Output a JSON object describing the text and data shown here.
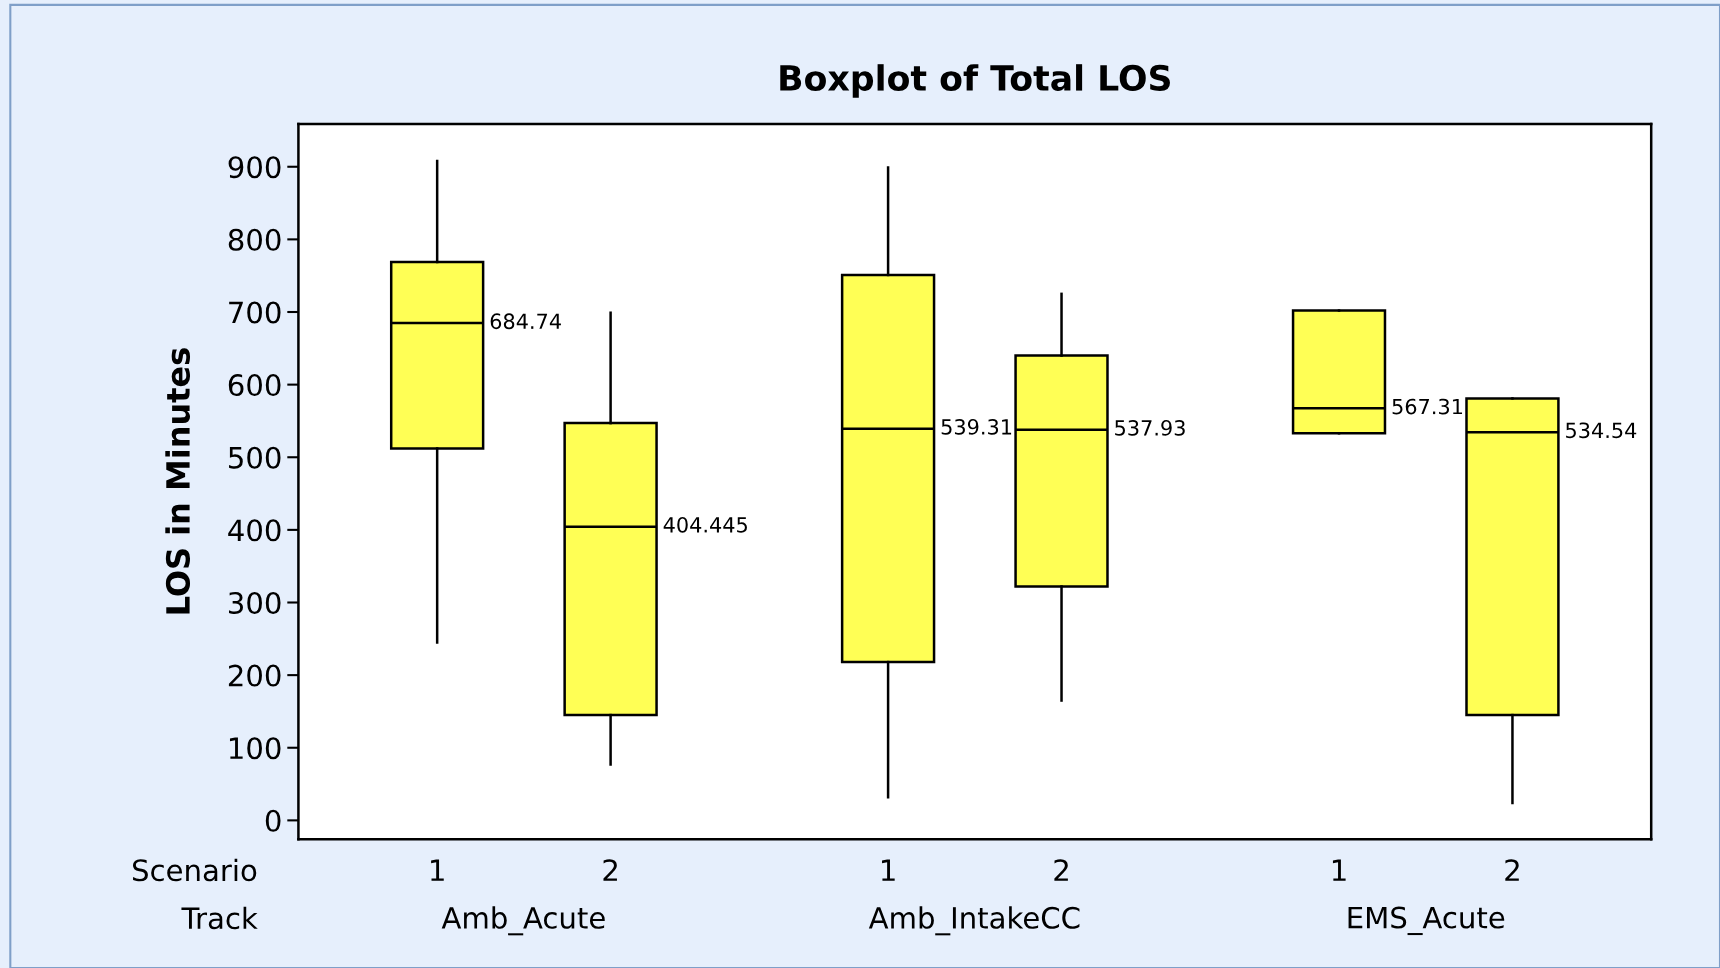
{
  "chart_data": {
    "type": "box",
    "title": "Boxplot of Total LOS",
    "ylabel": "LOS in Minutes",
    "categories": [
      "1",
      "2",
      "1",
      "2",
      "1",
      "2"
    ],
    "annotations": [
      "Scenario",
      "Track",
      "Amb_Acute",
      "Amb_IntakeCC",
      "EMS_Acute"
    ],
    "boxes": [
      {
        "low": 245,
        "q1": 512,
        "median": 684.74,
        "q3": 769,
        "high": 908
      },
      {
        "low": 77,
        "q1": 145,
        "median": 404.445,
        "q3": 547,
        "high": 699
      },
      {
        "low": 32,
        "q1": 218,
        "median": 539.31,
        "q3": 751,
        "high": 899
      },
      {
        "low": 165,
        "q1": 322,
        "median": 537.93,
        "q3": 640,
        "high": 725
      },
      {
        "low": 533,
        "q1": 533,
        "median": 567.31,
        "q3": 702,
        "high": 702
      },
      {
        "low": 24,
        "q1": 145,
        "median": 534.54,
        "q3": 581,
        "high": 581
      }
    ],
    "value_labels": [
      "684.74",
      "404.445",
      "539.31",
      "537.93",
      "567.31",
      "534.54"
    ],
    "color": "#ffff55",
    "grid": false,
    "ylim": [
      -26,
      959
    ],
    "yticks": [
      0,
      100,
      200,
      300,
      400,
      500,
      600,
      700,
      800,
      900
    ]
  }
}
